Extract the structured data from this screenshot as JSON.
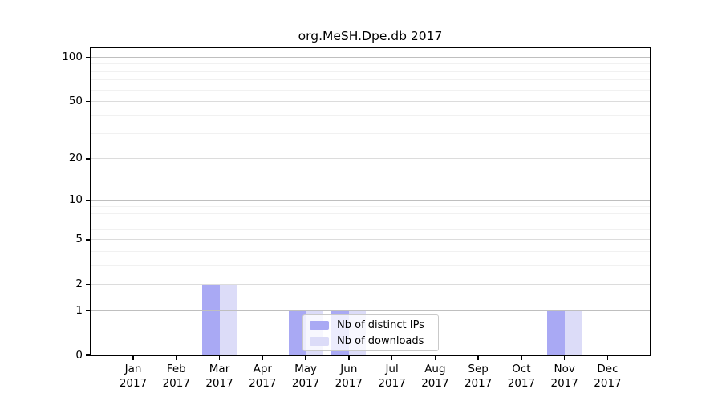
{
  "page": {
    "background": "#ffffff"
  },
  "chart_data": {
    "type": "bar",
    "title": "org.MeSH.Dpe.db 2017",
    "year_label": "2017",
    "categories": [
      "Jan",
      "Feb",
      "Mar",
      "Apr",
      "May",
      "Jun",
      "Jul",
      "Aug",
      "Sep",
      "Oct",
      "Nov",
      "Dec"
    ],
    "series": [
      {
        "name": "Nb of distinct IPs",
        "color": "#a9a9f4",
        "values": [
          0,
          0,
          2,
          0,
          1,
          1,
          0,
          0,
          0,
          0,
          1,
          0
        ]
      },
      {
        "name": "Nb of downloads",
        "color": "#dcdcf8",
        "values": [
          0,
          0,
          2,
          0,
          1,
          1,
          0,
          0,
          0,
          0,
          1,
          0
        ]
      }
    ],
    "y_scale": "log1p",
    "y_ticks": [
      0,
      1,
      2,
      5,
      10,
      20,
      50,
      100
    ],
    "ylim": [
      0,
      115
    ],
    "gridlines": [
      1,
      2,
      3,
      4,
      5,
      6,
      7,
      8,
      9,
      10,
      20,
      30,
      40,
      50,
      60,
      70,
      80,
      90,
      100
    ],
    "grid_colors": {
      "power_of_ten": "#bfbfbf",
      "labeled": "#dcdcdc",
      "minor": "#f1f1f1"
    },
    "axis_color": "#000000",
    "legend": {
      "position": "bottom-center-inside",
      "labels": [
        "Nb of distinct IPs",
        "Nb of downloads"
      ]
    }
  }
}
